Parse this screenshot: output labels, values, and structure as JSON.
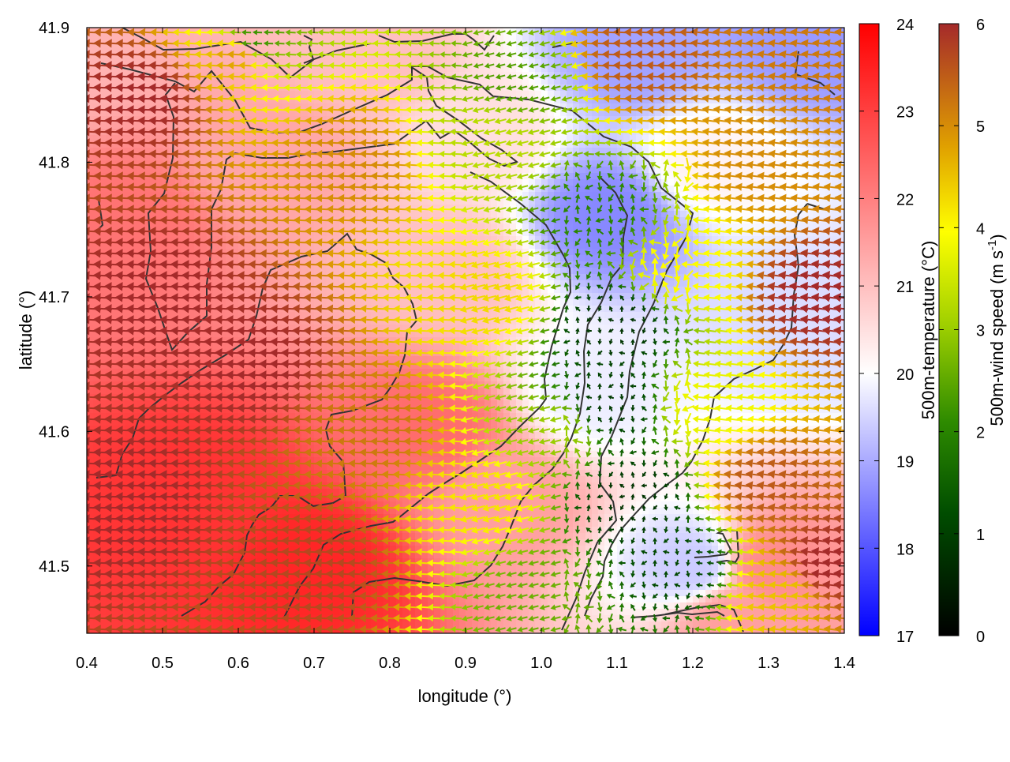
{
  "chart_data": {
    "type": "heatmap",
    "title": "",
    "xlabel": "longitude (°)",
    "ylabel": "latitude (°)",
    "xlim": [
      0.4,
      1.4
    ],
    "ylim": [
      41.45,
      41.9
    ],
    "xticks": [
      "0.4",
      "0.5",
      "0.6",
      "0.7",
      "0.8",
      "0.9",
      "1.0",
      "1.1",
      "1.2",
      "1.3",
      "1.4"
    ],
    "yticks": [
      "41.5",
      "41.6",
      "41.7",
      "41.8",
      "41.9"
    ],
    "grid": false,
    "legend": "none",
    "colorbars": [
      {
        "label": "500m-temperature (°C)",
        "range": [
          17,
          24
        ],
        "ticks": [
          "17",
          "18",
          "19",
          "20",
          "21",
          "22",
          "23",
          "24"
        ],
        "colors": [
          "#0000ff",
          "#ffffff",
          "#ff0000"
        ]
      },
      {
        "label_main": "500m-wind speed (m s",
        "label_exp": "-1",
        "label_end": ")",
        "range": [
          0,
          6
        ],
        "ticks": [
          "0",
          "1",
          "2",
          "3",
          "4",
          "5",
          "6"
        ],
        "colors": [
          "#000000",
          "#006400",
          "#7fbf00",
          "#ffff00",
          "#e0a000",
          "#a52a2a"
        ]
      }
    ],
    "temperature_field_approx": [
      {
        "lon": 0.55,
        "lat": 41.55,
        "t": 23.2
      },
      {
        "lon": 0.7,
        "lat": 41.5,
        "t": 23.4
      },
      {
        "lon": 0.85,
        "lat": 41.6,
        "t": 22.3
      },
      {
        "lon": 0.45,
        "lat": 41.75,
        "t": 22.2
      },
      {
        "lon": 0.65,
        "lat": 41.8,
        "t": 21.4
      },
      {
        "lon": 0.35,
        "lat": 41.88,
        "t": 21.2
      },
      {
        "lon": 1.09,
        "lat": 41.76,
        "t": 18.6
      },
      {
        "lon": 1.07,
        "lat": 41.63,
        "t": 19.8
      },
      {
        "lon": 1.12,
        "lat": 41.88,
        "t": 18.9
      },
      {
        "lon": 1.35,
        "lat": 41.89,
        "t": 18.8
      },
      {
        "lon": 1.34,
        "lat": 41.68,
        "t": 19.6
      },
      {
        "lon": 1.2,
        "lat": 41.5,
        "t": 19.4
      },
      {
        "lon": 1.3,
        "lat": 41.5,
        "t": 21.8
      },
      {
        "lon": 1.25,
        "lat": 41.46,
        "t": 21.5
      },
      {
        "lon": 0.95,
        "lat": 41.55,
        "t": 21.5
      },
      {
        "lon": 0.92,
        "lat": 41.82,
        "t": 20.5
      },
      {
        "lon": 0.78,
        "lat": 41.88,
        "t": 21.0
      },
      {
        "lon": 0.88,
        "lat": 41.72,
        "t": 21.0
      },
      {
        "lon": 1.22,
        "lat": 41.8,
        "t": 20.2
      }
    ],
    "wind_speed_field_approx": [
      {
        "lon": 0.5,
        "lat": 41.7,
        "ws": 6.0
      },
      {
        "lon": 0.45,
        "lat": 41.55,
        "ws": 6.0
      },
      {
        "lon": 0.62,
        "lat": 41.65,
        "ws": 6.0
      },
      {
        "lon": 0.48,
        "lat": 41.85,
        "ws": 6.0
      },
      {
        "lon": 0.7,
        "lat": 41.5,
        "ws": 5.7
      },
      {
        "lon": 0.78,
        "lat": 41.6,
        "ws": 5.2
      },
      {
        "lon": 0.75,
        "lat": 41.8,
        "ws": 5.0
      },
      {
        "lon": 0.6,
        "lat": 41.88,
        "ws": 4.8
      },
      {
        "lon": 0.62,
        "lat": 41.89,
        "ws": 2.2
      },
      {
        "lon": 0.92,
        "lat": 41.7,
        "ws": 4.3
      },
      {
        "lon": 0.92,
        "lat": 41.55,
        "ws": 4.2
      },
      {
        "lon": 0.93,
        "lat": 41.82,
        "ws": 3.3
      },
      {
        "lon": 0.97,
        "lat": 41.86,
        "ws": 2.4
      },
      {
        "lon": 1.0,
        "lat": 41.48,
        "ws": 2.6
      },
      {
        "lon": 1.02,
        "lat": 41.6,
        "ws": 3.0
      },
      {
        "lon": 1.08,
        "lat": 41.76,
        "ws": 2.0
      },
      {
        "lon": 1.1,
        "lat": 41.68,
        "ws": 0.8
      },
      {
        "lon": 1.09,
        "lat": 41.62,
        "ws": 0.9
      },
      {
        "lon": 1.12,
        "lat": 41.55,
        "ws": 0.8
      },
      {
        "lon": 1.18,
        "lat": 41.5,
        "ws": 1.1
      },
      {
        "lon": 1.13,
        "lat": 41.88,
        "ws": 5.5
      },
      {
        "lon": 1.18,
        "lat": 41.72,
        "ws": 4.0
      },
      {
        "lon": 1.22,
        "lat": 41.62,
        "ws": 3.8
      },
      {
        "lon": 1.3,
        "lat": 41.8,
        "ws": 5.0
      },
      {
        "lon": 1.3,
        "lat": 41.56,
        "ws": 5.5
      },
      {
        "lon": 1.37,
        "lat": 41.7,
        "ws": 6.0
      },
      {
        "lon": 1.37,
        "lat": 41.88,
        "ws": 5.2
      },
      {
        "lon": 1.32,
        "lat": 41.48,
        "ws": 4.5
      },
      {
        "lon": 1.38,
        "lat": 41.5,
        "ws": 6.0
      }
    ],
    "wind_direction_note": "westward flow over most of the domain; weak convergent flow in the central valley"
  }
}
